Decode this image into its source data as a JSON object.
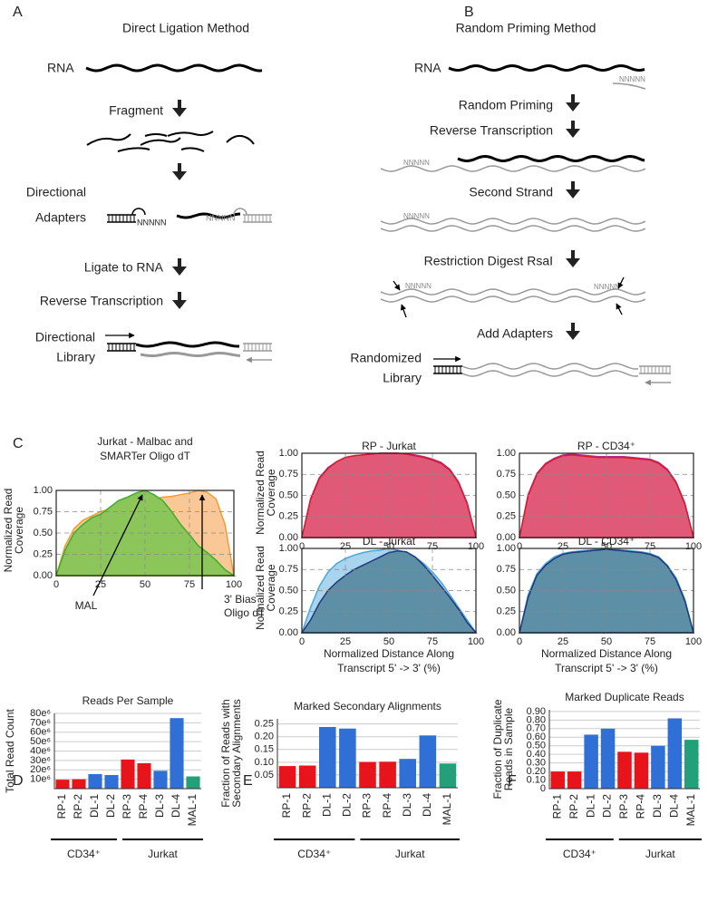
{
  "panel_labels": [
    "A",
    "B",
    "C",
    "D",
    "E",
    "F"
  ],
  "diagram_a": {
    "title": "Direct Ligation Method",
    "rna": "RNA",
    "fragment": "Fragment",
    "adapters": [
      "Directional",
      "Adapters"
    ],
    "ligate": "Ligate to RNA",
    "rt": "Reverse Transcription",
    "library": [
      "Directional",
      "Library"
    ],
    "nnnnn": [
      "NNNNN",
      "NNNNN"
    ]
  },
  "diagram_b": {
    "title": "Random Priming Method",
    "rna": "RNA",
    "priming": "Random Priming",
    "rt": "Reverse Transcription",
    "second": "Second Strand",
    "digest": "Restriction Digest RsaI",
    "adapters": "Add Adapters",
    "library": [
      "Randomized",
      "Library"
    ],
    "nnnnn": [
      "NNNNN",
      "NNNNN",
      "NNNNN",
      "NNNNN",
      "NNNNN"
    ]
  },
  "chart_data": [
    {
      "type": "area",
      "title": [
        "Jurkat - Malbac and",
        "SMARTer Oligo dT"
      ],
      "ylabel": [
        "Normalized Read",
        "Coverage"
      ],
      "x": [
        0,
        5,
        10,
        15,
        20,
        25,
        30,
        35,
        40,
        45,
        50,
        55,
        60,
        65,
        70,
        75,
        80,
        85,
        90,
        95,
        100
      ],
      "xlim": [
        0,
        100
      ],
      "ylim": [
        0,
        1
      ],
      "xticks": [
        0,
        25,
        50,
        75,
        100
      ],
      "yticks": [
        {
          "value": 0,
          "label": "0.00"
        },
        {
          "value": 0.25,
          "label": "0.25"
        },
        {
          "value": 0.5,
          "label": "0.50"
        },
        {
          "value": 0.75,
          "label": "0.75"
        },
        {
          "value": 1,
          "label": "1.00"
        }
      ],
      "grid": true,
      "annotations": [
        [
          "MAL"
        ],
        [
          "3' Bias",
          "Oligo dT"
        ]
      ],
      "series": [
        {
          "color": "#f39c34",
          "fill": "#f9c896",
          "values": [
            0,
            0.35,
            0.55,
            0.65,
            0.7,
            0.75,
            0.78,
            0.8,
            0.83,
            0.86,
            0.88,
            0.9,
            0.92,
            0.93,
            0.95,
            0.97,
            1.0,
            0.98,
            0.9,
            0.6,
            0
          ]
        },
        {
          "color": "#3dae2b",
          "fill": "#8cc55a",
          "values": [
            0,
            0.3,
            0.5,
            0.6,
            0.68,
            0.72,
            0.8,
            0.88,
            0.92,
            0.97,
            1.0,
            0.95,
            0.88,
            0.75,
            0.6,
            0.48,
            0.35,
            0.27,
            0.18,
            0.07,
            0
          ]
        }
      ]
    },
    {
      "type": "area",
      "title": "RP - Jurkat",
      "ylabel": [
        "Normalized Read",
        "Coverage"
      ],
      "x": [
        0,
        5,
        10,
        15,
        20,
        25,
        30,
        35,
        40,
        45,
        50,
        55,
        60,
        65,
        70,
        75,
        80,
        85,
        90,
        95,
        100
      ],
      "xlim": [
        0,
        100
      ],
      "ylim": [
        0,
        1
      ],
      "xticks": [
        0,
        25,
        50,
        75,
        100
      ],
      "yticks": [
        {
          "value": 0,
          "label": "0.00"
        },
        {
          "value": 0.25,
          "label": "0.25"
        },
        {
          "value": 0.5,
          "label": "0.50"
        },
        {
          "value": 0.75,
          "label": "0.75"
        },
        {
          "value": 1,
          "label": "1.00"
        }
      ],
      "grid": true,
      "series": [
        {
          "color": "#b0309a",
          "fill": "#c8478a",
          "values": [
            0,
            0.46,
            0.71,
            0.83,
            0.9,
            0.95,
            0.97,
            0.98,
            0.99,
            1.0,
            1.0,
            1.0,
            0.99,
            0.98,
            0.96,
            0.93,
            0.89,
            0.81,
            0.66,
            0.41,
            0
          ]
        },
        {
          "color": "#d7192d",
          "fill": "#e05a78",
          "values": [
            0,
            0.45,
            0.7,
            0.82,
            0.9,
            0.95,
            0.97,
            0.98,
            0.99,
            1.0,
            1.0,
            1.0,
            0.99,
            0.97,
            0.95,
            0.92,
            0.88,
            0.8,
            0.65,
            0.4,
            0
          ]
        }
      ]
    },
    {
      "type": "area",
      "title": "RP - CD34⁺",
      "x": [
        0,
        5,
        10,
        15,
        20,
        25,
        30,
        35,
        40,
        45,
        50,
        55,
        60,
        65,
        70,
        75,
        80,
        85,
        90,
        95,
        100
      ],
      "xlim": [
        0,
        100
      ],
      "ylim": [
        0,
        1
      ],
      "xticks": [
        0,
        25,
        50,
        75,
        100
      ],
      "yticks": [
        {
          "value": 0,
          "label": "0.00"
        },
        {
          "value": 0.25,
          "label": "0.25"
        },
        {
          "value": 0.5,
          "label": "0.50"
        },
        {
          "value": 0.75,
          "label": "0.75"
        },
        {
          "value": 1,
          "label": "1.00"
        }
      ],
      "grid": true,
      "series": [
        {
          "color": "#b0309a",
          "fill": "#c8478a",
          "values": [
            0,
            0.51,
            0.76,
            0.88,
            0.94,
            0.98,
            0.99,
            0.98,
            0.97,
            0.96,
            0.96,
            0.96,
            0.96,
            0.95,
            0.94,
            0.93,
            0.89,
            0.81,
            0.66,
            0.41,
            0
          ]
        },
        {
          "color": "#d7192d",
          "fill": "#e05a78",
          "values": [
            0,
            0.5,
            0.75,
            0.87,
            0.93,
            0.97,
            0.98,
            0.97,
            0.96,
            0.95,
            0.95,
            0.95,
            0.95,
            0.94,
            0.93,
            0.92,
            0.88,
            0.8,
            0.65,
            0.4,
            0
          ]
        }
      ]
    },
    {
      "type": "area",
      "title": "DL - Jurkat",
      "ylabel": [
        "Normalized Read",
        "Coverage"
      ],
      "xlabel": [
        "Normalized Distance Along",
        "Transcript 5' -> 3' (%)"
      ],
      "x": [
        0,
        5,
        10,
        15,
        20,
        25,
        30,
        35,
        40,
        45,
        50,
        55,
        60,
        65,
        70,
        75,
        80,
        85,
        90,
        95,
        100
      ],
      "xlim": [
        0,
        100
      ],
      "ylim": [
        0,
        1
      ],
      "xticks": [
        0,
        25,
        50,
        75,
        100
      ],
      "yticks": [
        {
          "value": 0,
          "label": "0.00"
        },
        {
          "value": 0.25,
          "label": "0.25"
        },
        {
          "value": 0.5,
          "label": "0.50"
        },
        {
          "value": 0.75,
          "label": "0.75"
        },
        {
          "value": 1,
          "label": "1.00"
        }
      ],
      "grid": true,
      "series": [
        {
          "color": "#4aa6dd",
          "fill": "#a9d4ee",
          "values": [
            0,
            0.3,
            0.55,
            0.72,
            0.82,
            0.88,
            0.92,
            0.95,
            0.97,
            0.98,
            1.0,
            0.98,
            0.95,
            0.9,
            0.82,
            0.72,
            0.6,
            0.45,
            0.3,
            0.15,
            0
          ]
        },
        {
          "color": "#1f3a7a",
          "fill": "#5d8fa7",
          "values": [
            0,
            0.15,
            0.35,
            0.5,
            0.6,
            0.68,
            0.75,
            0.8,
            0.85,
            0.9,
            0.95,
            0.97,
            0.96,
            0.9,
            0.8,
            0.68,
            0.55,
            0.42,
            0.28,
            0.12,
            0
          ]
        }
      ]
    },
    {
      "type": "area",
      "title": "DL - CD34⁺",
      "xlabel": [
        "Normalized Distance Along",
        "Transcript 5' -> 3' (%)"
      ],
      "x": [
        0,
        5,
        10,
        15,
        20,
        25,
        30,
        35,
        40,
        45,
        50,
        55,
        60,
        65,
        70,
        75,
        80,
        85,
        90,
        95,
        100
      ],
      "xlim": [
        0,
        100
      ],
      "ylim": [
        0,
        1
      ],
      "xticks": [
        0,
        25,
        50,
        75,
        100
      ],
      "yticks": [
        {
          "value": 0,
          "label": "0.00"
        },
        {
          "value": 0.25,
          "label": "0.25"
        },
        {
          "value": 0.5,
          "label": "0.50"
        },
        {
          "value": 0.75,
          "label": "0.75"
        },
        {
          "value": 1,
          "label": "1.00"
        }
      ],
      "grid": true,
      "series": [
        {
          "color": "#4aa6dd",
          "fill": "#a9d4ee",
          "values": [
            0,
            0.45,
            0.7,
            0.82,
            0.9,
            0.94,
            0.96,
            0.97,
            0.98,
            0.99,
            1.0,
            0.99,
            0.98,
            0.97,
            0.96,
            0.94,
            0.9,
            0.8,
            0.65,
            0.4,
            0
          ]
        },
        {
          "color": "#1f3a7a",
          "fill": "#5d8fa7",
          "values": [
            0,
            0.42,
            0.68,
            0.8,
            0.88,
            0.93,
            0.95,
            0.96,
            0.97,
            0.98,
            0.99,
            0.98,
            0.97,
            0.96,
            0.95,
            0.93,
            0.89,
            0.79,
            0.63,
            0.38,
            0
          ]
        }
      ]
    },
    {
      "type": "bar",
      "title": "Reads Per Sample",
      "ylabel": [
        "Total Read Count"
      ],
      "categories": [
        "RP-1",
        "RP-2",
        "DL-1",
        "DL-2",
        "RP-3",
        "RP-4",
        "DL-3",
        "DL-4",
        "MAL-1"
      ],
      "values": [
        9500000,
        10000000,
        15500000,
        14500000,
        31000000,
        27000000,
        19000000,
        75000000,
        13000000
      ],
      "colors": [
        "#e8141b",
        "#e8141b",
        "#2f6fd6",
        "#2f6fd6",
        "#e8141b",
        "#e8141b",
        "#2f6fd6",
        "#2f6fd6",
        "#22a07a"
      ],
      "ylim": [
        0,
        80000000
      ],
      "yticks": [
        {
          "value": 10000000,
          "label": "10e⁶"
        },
        {
          "value": 20000000,
          "label": "20e⁶"
        },
        {
          "value": 30000000,
          "label": "30e⁶"
        },
        {
          "value": 40000000,
          "label": "40e⁶"
        },
        {
          "value": 50000000,
          "label": "50e⁶"
        },
        {
          "value": 60000000,
          "label": "60e⁶"
        },
        {
          "value": 70000000,
          "label": "70e⁶"
        },
        {
          "value": 80000000,
          "label": "80e⁶"
        }
      ],
      "grid": true,
      "group_labels": [
        "CD34⁺",
        "Jurkat"
      ]
    },
    {
      "type": "bar",
      "title": "Marked Secondary Alignments",
      "ylabel": [
        "Fraction of Reads with",
        "Secondary Alignments"
      ],
      "categories": [
        "RP-1",
        "RP-2",
        "DL-1",
        "DL-2",
        "RP-3",
        "RP-4",
        "DL-3",
        "DL-4",
        "MAL-1"
      ],
      "values": [
        0.085,
        0.087,
        0.238,
        0.232,
        0.101,
        0.102,
        0.113,
        0.205,
        0.095
      ],
      "colors": [
        "#e8141b",
        "#e8141b",
        "#2f6fd6",
        "#2f6fd6",
        "#e8141b",
        "#e8141b",
        "#2f6fd6",
        "#2f6fd6",
        "#22a07a"
      ],
      "ylim": [
        0,
        0.27
      ],
      "yticks": [
        0.05,
        {
          "value": 0.1,
          "label": "0.10"
        },
        0.15,
        {
          "value": 0.2,
          "label": "0.20"
        },
        0.25
      ],
      "grid": true,
      "group_labels": [
        "CD34⁺",
        "Jurkat"
      ]
    },
    {
      "type": "bar",
      "title": "Marked Duplicate Reads",
      "ylabel": [
        "Fraction of Duplicate",
        "Reads in Sample"
      ],
      "categories": [
        "RP-1",
        "RP-2",
        "DL-1",
        "DL-2",
        "RP-3",
        "RP-4",
        "DL-3",
        "DL-4",
        "MAL-1"
      ],
      "values": [
        0.2,
        0.2,
        0.63,
        0.7,
        0.43,
        0.42,
        0.5,
        0.82,
        0.57
      ],
      "colors": [
        "#e8141b",
        "#e8141b",
        "#2f6fd6",
        "#2f6fd6",
        "#e8141b",
        "#e8141b",
        "#2f6fd6",
        "#2f6fd6",
        "#22a07a"
      ],
      "ylim": [
        0,
        0.92
      ],
      "yticks": [
        0,
        {
          "value": 0.1,
          "label": "0.10"
        },
        {
          "value": 0.2,
          "label": "0.20"
        },
        {
          "value": 0.3,
          "label": "0.30"
        },
        {
          "value": 0.4,
          "label": "0.40"
        },
        {
          "value": 0.5,
          "label": "0.50"
        },
        {
          "value": 0.6,
          "label": "0.60"
        },
        {
          "value": 0.7,
          "label": "0.70"
        },
        {
          "value": 0.8,
          "label": "0.80"
        },
        {
          "value": 0.9,
          "label": "0.90"
        }
      ],
      "grid": true,
      "group_labels": [
        "CD34⁺",
        "Jurkat"
      ]
    }
  ]
}
